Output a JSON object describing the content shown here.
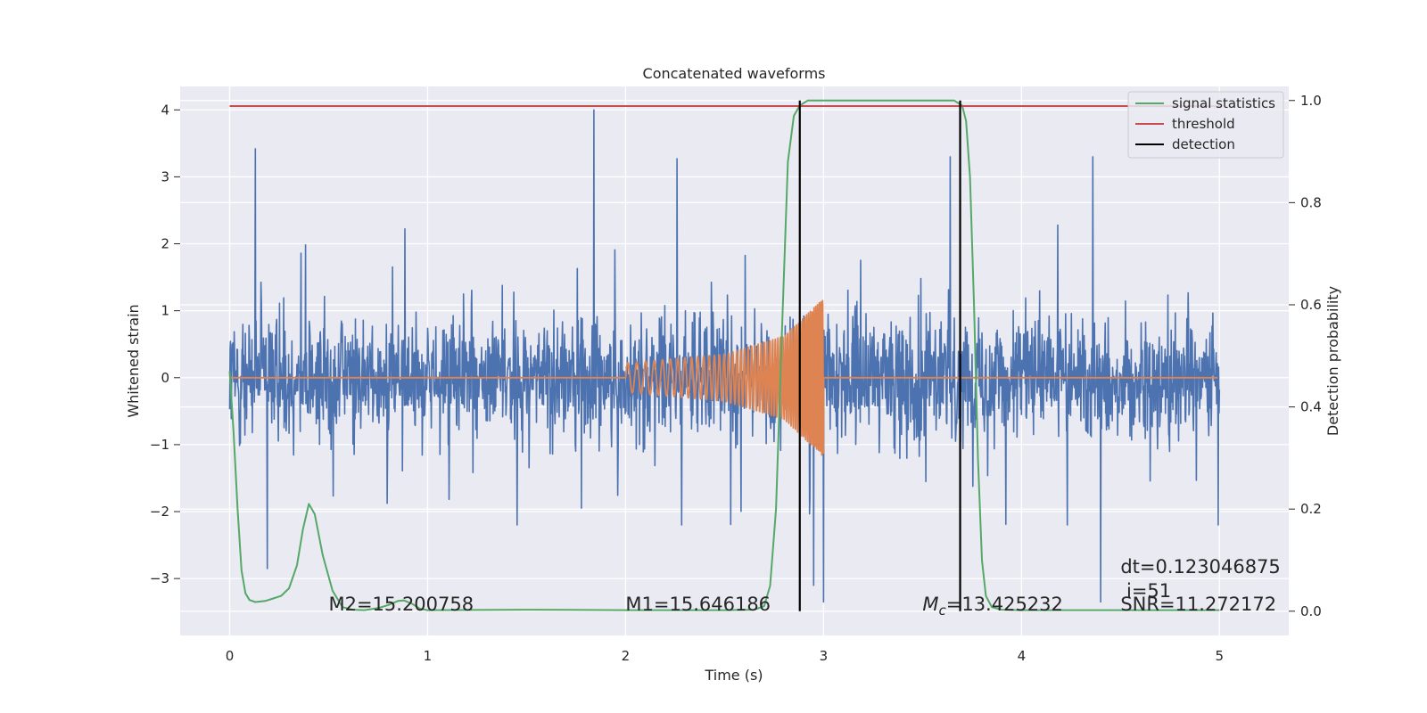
{
  "chart_data": {
    "type": "line",
    "title": "Concatenated waveforms",
    "xlabel": "Time (s)",
    "ylabel": "Whitened strain",
    "y2label": "Detection probability",
    "xlim": [
      -0.25,
      5.35
    ],
    "ylim": [
      -3.85,
      4.35
    ],
    "y2lim": [
      -0.0475,
      1.0275
    ],
    "xticks": [
      0,
      1,
      2,
      3,
      4,
      5
    ],
    "yticks": [
      -3,
      -2,
      -1,
      0,
      1,
      2,
      3,
      4
    ],
    "y2ticks": [
      0.0,
      0.2,
      0.4,
      0.6,
      0.8,
      1.0
    ],
    "grid": true,
    "legend_position": "top-right",
    "series": [
      {
        "name": "",
        "kind": "noise",
        "color": "#4c72b0",
        "x_range": [
          0,
          5
        ],
        "typical_amplitude": [
          -2.2,
          2.6
        ],
        "notable_peaks": [
          [
            0.13,
            3.42
          ],
          [
            1.84,
            4.0
          ],
          [
            2.26,
            3.27
          ],
          [
            3.64,
            3.3
          ],
          [
            4.36,
            3.3
          ]
        ],
        "notable_troughs": [
          [
            0.19,
            -2.85
          ],
          [
            3.0,
            -3.35
          ],
          [
            4.4,
            -3.35
          ],
          [
            2.95,
            -3.1
          ]
        ]
      },
      {
        "name": "",
        "kind": "chirp",
        "color": "#dd8452",
        "x": [
          0,
          2.0,
          2.5,
          2.8,
          3.0,
          3.0,
          5.0
        ],
        "envelope": [
          0,
          0.22,
          0.35,
          0.62,
          1.18,
          0,
          0
        ]
      },
      {
        "name": "signal statistics",
        "axis": "right",
        "color": "#55a868",
        "x": [
          0.0,
          0.02,
          0.04,
          0.06,
          0.08,
          0.1,
          0.13,
          0.18,
          0.22,
          0.26,
          0.3,
          0.34,
          0.37,
          0.4,
          0.43,
          0.47,
          0.52,
          0.57,
          0.62,
          0.68,
          0.75,
          0.8,
          0.85,
          0.88,
          0.92,
          0.96,
          1.0,
          1.5,
          2.0,
          2.5,
          2.65,
          2.7,
          2.73,
          2.76,
          2.79,
          2.82,
          2.85,
          2.88,
          2.92,
          3.0,
          3.5,
          3.66,
          3.7,
          3.72,
          3.74,
          3.76,
          3.78,
          3.8,
          3.82,
          3.85,
          3.9,
          4.0,
          5.0
        ],
        "y": [
          0.47,
          0.35,
          0.2,
          0.08,
          0.035,
          0.022,
          0.018,
          0.02,
          0.025,
          0.03,
          0.045,
          0.09,
          0.16,
          0.21,
          0.19,
          0.11,
          0.04,
          0.008,
          0.003,
          0.002,
          0.006,
          0.012,
          0.02,
          0.021,
          0.015,
          0.005,
          0.002,
          0.003,
          0.002,
          0.002,
          0.003,
          0.01,
          0.05,
          0.2,
          0.55,
          0.88,
          0.97,
          0.99,
          1.0,
          1.0,
          1.0,
          1.0,
          0.99,
          0.96,
          0.85,
          0.6,
          0.3,
          0.1,
          0.03,
          0.008,
          0.003,
          0.002,
          0.002
        ]
      },
      {
        "name": "threshold",
        "axis": "right",
        "color": "#c44e52",
        "x": [
          0,
          5
        ],
        "y": [
          0.989,
          0.989
        ]
      },
      {
        "name": "detection",
        "axis": "right",
        "color": "#000000",
        "vlines": [
          2.88,
          3.69
        ],
        "ymin": 0.0,
        "ymax": 1.0
      }
    ],
    "annotations": [
      {
        "text_parts": [
          "M2=15.200758"
        ],
        "x": 0.5,
        "y": -3.48,
        "size": "large"
      },
      {
        "text_parts": [
          "M1=15.646186"
        ],
        "x": 2.0,
        "y": -3.48,
        "size": "large"
      },
      {
        "text_parts": [
          "M",
          "c",
          "=13.425232"
        ],
        "x": 3.5,
        "y": -3.48,
        "size": "large",
        "subscript_index": 1
      },
      {
        "text_parts": [
          "dt=0.123046875"
        ],
        "x": 4.5,
        "y": -2.92,
        "size": "large"
      },
      {
        "text_parts": [
          "i=51"
        ],
        "x": 4.53,
        "y": -3.28,
        "size": "large"
      },
      {
        "text_parts": [
          "SNR=11.272172"
        ],
        "x": 4.5,
        "y": -3.48,
        "size": "large"
      }
    ]
  },
  "colors": {
    "figure_background": "#ffffff",
    "plot_background": "#eaeaf2",
    "grid": "#ffffff",
    "text": "#262626"
  }
}
